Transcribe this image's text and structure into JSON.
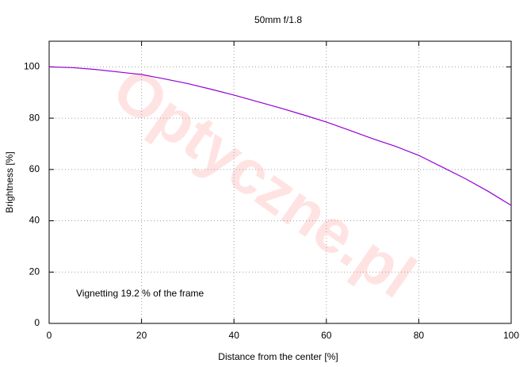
{
  "chart_data": {
    "type": "line",
    "title": "50mm f/1.8",
    "x_label": "Distance from the center [%]",
    "y_label": "Brightness [%]",
    "annotation": "Vignetting 19.2 % of the frame",
    "watermark": "Optyczne.pl",
    "x": [
      0,
      5,
      10,
      15,
      20,
      25,
      30,
      35,
      40,
      45,
      50,
      55,
      60,
      65,
      70,
      75,
      80,
      85,
      90,
      95,
      100
    ],
    "series": [
      {
        "color": "#9400d3",
        "values": [
          100,
          99.7,
          99,
          98,
          97,
          95.3,
          93.5,
          91.3,
          89,
          86.5,
          84,
          81.3,
          78.5,
          75.3,
          72,
          69,
          65.5,
          61,
          56.5,
          51.5,
          46
        ]
      }
    ],
    "xlim": [
      0,
      100
    ],
    "xticks": [
      0,
      20,
      40,
      60,
      80,
      100
    ],
    "ylim": [
      0,
      110
    ],
    "yticks": [
      0,
      20,
      40,
      60,
      80,
      100
    ],
    "grid": true
  }
}
